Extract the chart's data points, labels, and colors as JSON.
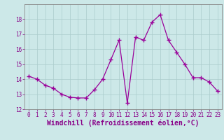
{
  "x": [
    0,
    1,
    2,
    3,
    4,
    5,
    6,
    7,
    8,
    9,
    10,
    11,
    12,
    13,
    14,
    15,
    16,
    17,
    18,
    19,
    20,
    21,
    22,
    23
  ],
  "y": [
    14.2,
    14.0,
    13.6,
    13.4,
    13.0,
    12.8,
    12.75,
    12.75,
    13.3,
    14.0,
    15.3,
    16.6,
    12.4,
    16.8,
    16.6,
    17.8,
    18.3,
    16.6,
    15.8,
    15.0,
    14.1,
    14.1,
    13.8,
    13.2
  ],
  "line_color": "#990099",
  "marker": "+",
  "bg_color": "#cce8e8",
  "grid_color": "#aacccc",
  "xlabel": "Windchill (Refroidissement éolien,°C)",
  "ylim": [
    12,
    19
  ],
  "xlim_left": -0.5,
  "xlim_right": 23.5,
  "yticks": [
    12,
    13,
    14,
    15,
    16,
    17,
    18
  ],
  "xticks": [
    0,
    1,
    2,
    3,
    4,
    5,
    6,
    7,
    8,
    9,
    10,
    11,
    12,
    13,
    14,
    15,
    16,
    17,
    18,
    19,
    20,
    21,
    22,
    23
  ],
  "tick_color": "#880088",
  "tick_labelsize": 5.5,
  "xlabel_fontsize": 7,
  "spine_color": "#888888",
  "markersize": 4,
  "linewidth": 0.9
}
